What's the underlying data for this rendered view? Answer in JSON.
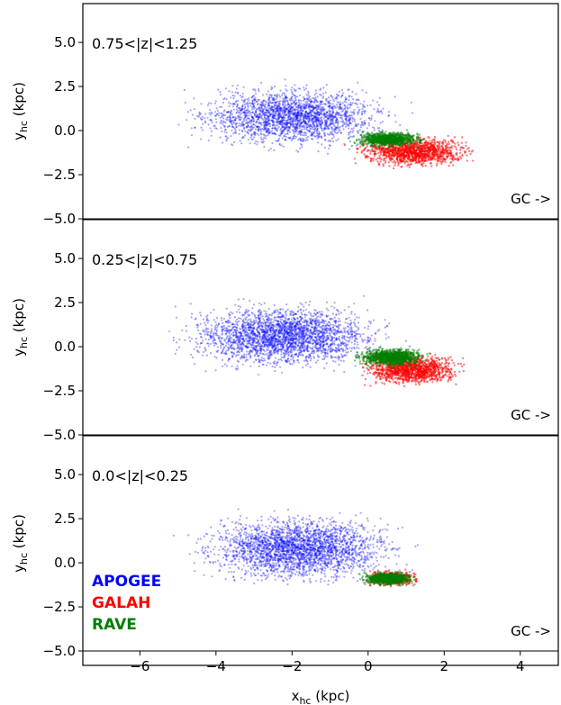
{
  "chart_data": {
    "type": "scatter",
    "xlabel": {
      "main": "x",
      "sub": "hc",
      "unit": " (kpc)"
    },
    "ylabel": {
      "main": "y",
      "sub": "hc",
      "unit": " (kpc)"
    },
    "xlim": [
      -7.5,
      5.0
    ],
    "ylim": [
      -5.0,
      7.2
    ],
    "xticks": [
      -6,
      -4,
      -2,
      0,
      2,
      4
    ],
    "xtick_labels": [
      "−6",
      "−4",
      "−2",
      "0",
      "2",
      "4"
    ],
    "yticks": [
      5.0,
      2.5,
      0.0,
      -2.5,
      -5.0
    ],
    "ytick_labels": [
      "5.0",
      "2.5",
      "0.0",
      "−2.5",
      "−5.0"
    ],
    "direction_label": "GC ->",
    "legend_placement": "bottom-left (bottom panel)",
    "series": [
      {
        "name": "APOGEE",
        "color": "#0000ff"
      },
      {
        "name": "GALAH",
        "color": "#ff0000"
      },
      {
        "name": "RAVE",
        "color": "#008000"
      }
    ],
    "panels": [
      {
        "label": "0.75<|z|<1.25",
        "series": [
          {
            "center": [
              -2.0,
              0.8
            ],
            "spread": [
              3.0,
              2.0
            ],
            "count": 2200
          },
          {
            "center": [
              1.2,
              -1.2
            ],
            "spread": [
              1.7,
              1.0
            ],
            "count": 1200
          },
          {
            "center": [
              0.5,
              -0.5
            ],
            "spread": [
              1.0,
              0.5
            ],
            "count": 900
          }
        ]
      },
      {
        "label": "0.25<|z|<0.75",
        "series": [
          {
            "center": [
              -2.2,
              0.6
            ],
            "spread": [
              3.0,
              2.1
            ],
            "count": 2600
          },
          {
            "center": [
              1.1,
              -1.3
            ],
            "spread": [
              1.5,
              1.0
            ],
            "count": 1200
          },
          {
            "center": [
              0.6,
              -0.6
            ],
            "spread": [
              1.0,
              0.6
            ],
            "count": 1100
          }
        ]
      },
      {
        "label": "0.0<|z|<0.25",
        "series": [
          {
            "center": [
              -1.8,
              0.8
            ],
            "spread": [
              3.0,
              2.2
            ],
            "count": 2600
          },
          {
            "center": [
              0.6,
              -0.9
            ],
            "spread": [
              0.8,
              0.5
            ],
            "count": 500
          },
          {
            "center": [
              0.5,
              -0.9
            ],
            "spread": [
              0.7,
              0.4
            ],
            "count": 1000
          }
        ]
      }
    ]
  }
}
